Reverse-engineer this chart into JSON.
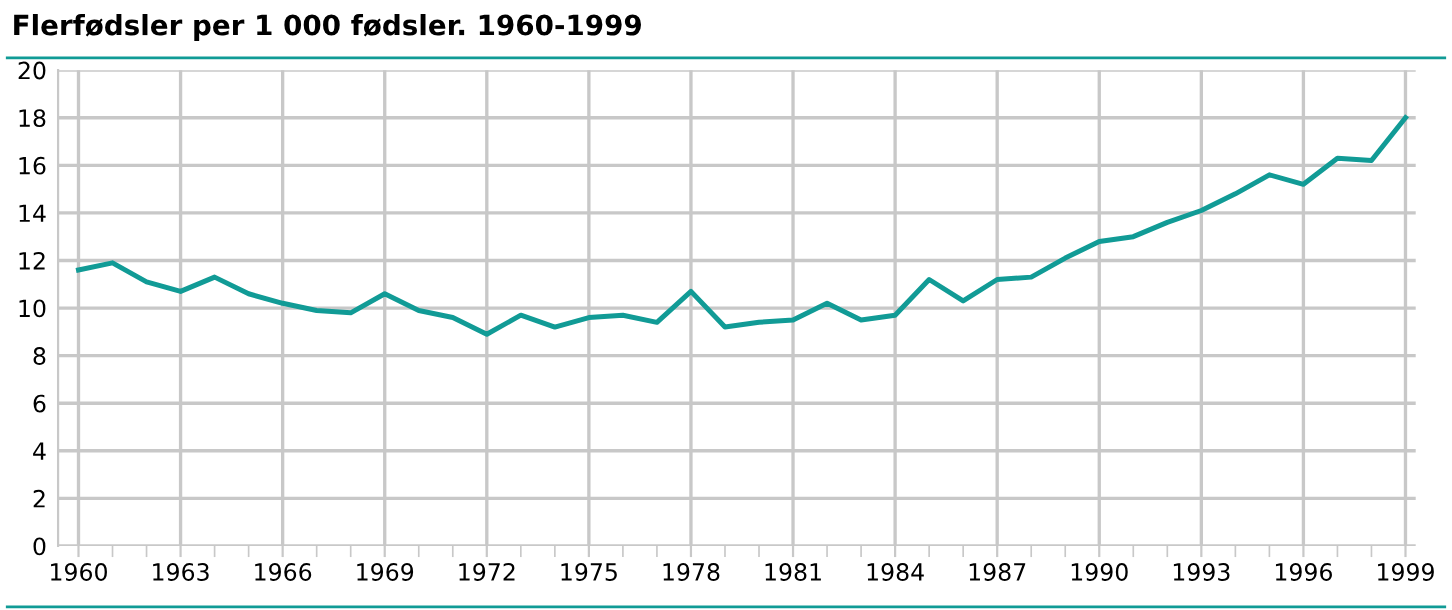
{
  "chart_data": {
    "type": "line",
    "title": "Flerfødsler per 1 000 fødsler. 1960-1999",
    "x": [
      1960,
      1961,
      1962,
      1963,
      1964,
      1965,
      1966,
      1967,
      1968,
      1969,
      1970,
      1971,
      1972,
      1973,
      1974,
      1975,
      1976,
      1977,
      1978,
      1979,
      1980,
      1981,
      1982,
      1983,
      1984,
      1985,
      1986,
      1987,
      1988,
      1989,
      1990,
      1991,
      1992,
      1993,
      1994,
      1995,
      1996,
      1997,
      1998,
      1999
    ],
    "series": [
      {
        "color": "#119b96",
        "values": [
          11.6,
          11.9,
          11.1,
          10.7,
          11.3,
          10.6,
          10.2,
          9.9,
          9.8,
          10.6,
          9.9,
          9.6,
          8.9,
          9.7,
          9.2,
          9.6,
          9.7,
          9.4,
          10.7,
          9.2,
          9.4,
          9.5,
          10.2,
          9.5,
          9.7,
          11.2,
          10.3,
          11.2,
          11.3,
          12.1,
          12.8,
          13.0,
          13.6,
          14.1,
          14.8,
          15.6,
          15.2,
          16.3,
          16.2,
          18.0
        ]
      }
    ],
    "xlim": [
      1959.4,
      1999.3
    ],
    "ylim": [
      0,
      20
    ],
    "xticks": [
      1960,
      {
        "value": 1961,
        "label": null
      },
      {
        "value": 1962,
        "label": null
      },
      1963,
      {
        "value": 1964,
        "label": null
      },
      {
        "value": 1965,
        "label": null
      },
      1966,
      {
        "value": 1967,
        "label": null
      },
      {
        "value": 1968,
        "label": null
      },
      1969,
      {
        "value": 1970,
        "label": null
      },
      {
        "value": 1971,
        "label": null
      },
      1972,
      {
        "value": 1973,
        "label": null
      },
      {
        "value": 1974,
        "label": null
      },
      1975,
      {
        "value": 1976,
        "label": null
      },
      {
        "value": 1977,
        "label": null
      },
      1978,
      {
        "value": 1979,
        "label": null
      },
      {
        "value": 1980,
        "label": null
      },
      1981,
      {
        "value": 1982,
        "label": null
      },
      {
        "value": 1983,
        "label": null
      },
      1984,
      {
        "value": 1985,
        "label": null
      },
      {
        "value": 1986,
        "label": null
      },
      1987,
      {
        "value": 1988,
        "label": null
      },
      {
        "value": 1989,
        "label": null
      },
      1990,
      {
        "value": 1991,
        "label": null
      },
      {
        "value": 1992,
        "label": null
      },
      1993,
      {
        "value": 1994,
        "label": null
      },
      {
        "value": 1995,
        "label": null
      },
      1996,
      {
        "value": 1997,
        "label": null
      },
      {
        "value": 1998,
        "label": null
      },
      1999
    ],
    "yticks": [
      0,
      2,
      4,
      6,
      8,
      10,
      12,
      14,
      16,
      18,
      20
    ],
    "grid": true,
    "legend": false,
    "marker": "none",
    "line_style": "solid"
  }
}
